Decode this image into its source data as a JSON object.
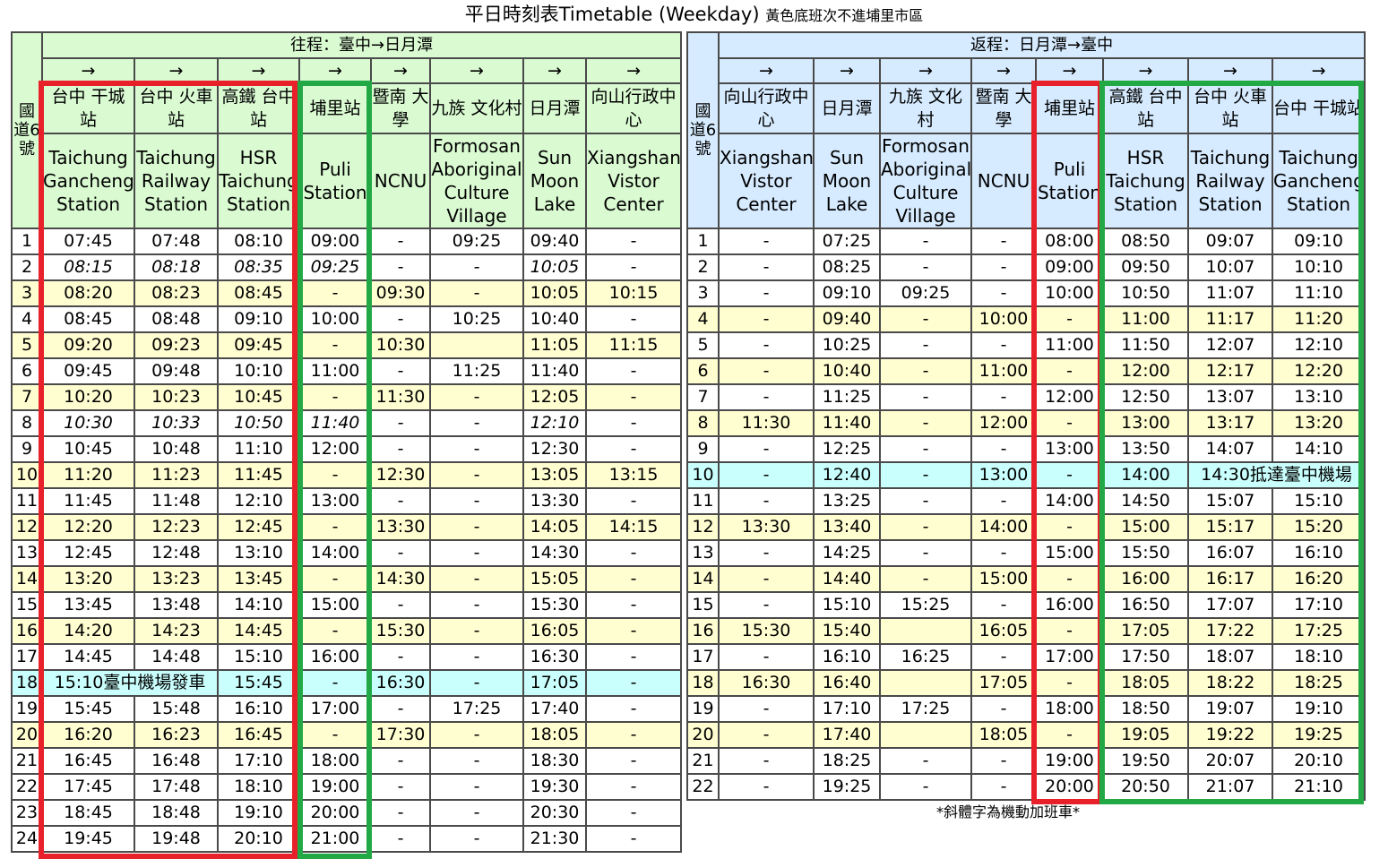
{
  "title": {
    "main": "平日時刻表Timetable (Weekday)",
    "sub": "黃色底班次不進埔里市區"
  },
  "note": "*斜體字為機動加班車*",
  "outbound": {
    "direction": "往程：臺中→日月潭",
    "route_label": "國道6號",
    "arrow": "→",
    "stops": [
      {
        "zh": "台中 干城站",
        "en": "Taichung Gancheng Station"
      },
      {
        "zh": "台中 火車站",
        "en": "Taichung Railway Station"
      },
      {
        "zh": "高鐵 台中站",
        "en": "HSR Taichung Station"
      },
      {
        "zh": "埔里站",
        "en": "Puli Station"
      },
      {
        "zh": "暨南 大學",
        "en": "NCNU"
      },
      {
        "zh": "九族 文化村",
        "en": "Formosan Aboriginal Culture Village"
      },
      {
        "zh": "日月潭",
        "en": "Sun Moon Lake"
      },
      {
        "zh": "向山行政中心",
        "en": "Xiangshan Vistor Center"
      }
    ],
    "rows": [
      {
        "no": "1",
        "t": [
          "07:45",
          "07:48",
          "08:10",
          "09:00",
          "-",
          "09:25",
          "09:40",
          "-"
        ]
      },
      {
        "no": "2",
        "italic": true,
        "t": [
          "08:15",
          "08:18",
          "08:35",
          "09:25",
          "-",
          "-",
          "10:05",
          "-"
        ]
      },
      {
        "no": "3",
        "yellow": true,
        "t": [
          "08:20",
          "08:23",
          "08:45",
          "-",
          "09:30",
          "-",
          "10:05",
          "10:15"
        ]
      },
      {
        "no": "4",
        "t": [
          "08:45",
          "08:48",
          "09:10",
          "10:00",
          "-",
          "10:25",
          "10:40",
          "-"
        ]
      },
      {
        "no": "5",
        "yellow": true,
        "t": [
          "09:20",
          "09:23",
          "09:45",
          "-",
          "10:30",
          "",
          "11:05",
          "11:15"
        ]
      },
      {
        "no": "6",
        "t": [
          "09:45",
          "09:48",
          "10:10",
          "11:00",
          "-",
          "11:25",
          "11:40",
          "-"
        ]
      },
      {
        "no": "7",
        "yellow": true,
        "t": [
          "10:20",
          "10:23",
          "10:45",
          "-",
          "11:30",
          "-",
          "12:05",
          "-"
        ]
      },
      {
        "no": "8",
        "italic": true,
        "t": [
          "10:30",
          "10:33",
          "10:50",
          "11:40",
          "-",
          "-",
          "12:10",
          "-"
        ]
      },
      {
        "no": "9",
        "t": [
          "10:45",
          "10:48",
          "11:10",
          "12:00",
          "-",
          "-",
          "12:30",
          "-"
        ]
      },
      {
        "no": "10",
        "yellow": true,
        "t": [
          "11:20",
          "11:23",
          "11:45",
          "-",
          "12:30",
          "-",
          "13:05",
          "13:15"
        ]
      },
      {
        "no": "11",
        "t": [
          "11:45",
          "11:48",
          "12:10",
          "13:00",
          "-",
          "-",
          "13:30",
          "-"
        ]
      },
      {
        "no": "12",
        "yellow": true,
        "t": [
          "12:20",
          "12:23",
          "12:45",
          "-",
          "13:30",
          "-",
          "14:05",
          "14:15"
        ]
      },
      {
        "no": "13",
        "t": [
          "12:45",
          "12:48",
          "13:10",
          "14:00",
          "-",
          "-",
          "14:30",
          "-"
        ]
      },
      {
        "no": "14",
        "yellow": true,
        "t": [
          "13:20",
          "13:23",
          "13:45",
          "-",
          "14:30",
          "-",
          "15:05",
          "-"
        ]
      },
      {
        "no": "15",
        "t": [
          "13:45",
          "13:48",
          "14:10",
          "15:00",
          "-",
          "-",
          "15:30",
          "-"
        ]
      },
      {
        "no": "16",
        "yellow": true,
        "t": [
          "14:20",
          "14:23",
          "14:45",
          "-",
          "15:30",
          "-",
          "16:05",
          "-"
        ]
      },
      {
        "no": "17",
        "t": [
          "14:45",
          "14:48",
          "15:10",
          "16:00",
          "-",
          "-",
          "16:30",
          "-"
        ]
      },
      {
        "no": "18",
        "cyan": true,
        "merged": "15:10臺中機場發車",
        "t": [
          "15:45",
          "-",
          "16:30",
          "-",
          "17:05",
          "-"
        ]
      },
      {
        "no": "19",
        "t": [
          "15:45",
          "15:48",
          "16:10",
          "17:00",
          "-",
          "17:25",
          "17:40",
          "-"
        ]
      },
      {
        "no": "20",
        "yellow": true,
        "t": [
          "16:20",
          "16:23",
          "16:45",
          "-",
          "17:30",
          "-",
          "18:05",
          "-"
        ]
      },
      {
        "no": "21",
        "t": [
          "16:45",
          "16:48",
          "17:10",
          "18:00",
          "-",
          "-",
          "18:30",
          "-"
        ]
      },
      {
        "no": "22",
        "t": [
          "17:45",
          "17:48",
          "18:10",
          "19:00",
          "-",
          "-",
          "19:30",
          "-"
        ]
      },
      {
        "no": "23",
        "t": [
          "18:45",
          "18:48",
          "19:10",
          "20:00",
          "-",
          "-",
          "20:30",
          "-"
        ]
      },
      {
        "no": "24",
        "t": [
          "19:45",
          "19:48",
          "20:10",
          "21:00",
          "-",
          "-",
          "21:30",
          "-"
        ]
      }
    ]
  },
  "return": {
    "direction": "返程：日月潭→臺中",
    "route_label": "國道6號",
    "arrow": "→",
    "stops": [
      {
        "zh": "向山行政中心",
        "en": "Xiangshan Vistor Center"
      },
      {
        "zh": "日月潭",
        "en": "Sun Moon Lake"
      },
      {
        "zh": "九族 文化村",
        "en": "Formosan Aboriginal Culture Village"
      },
      {
        "zh": "暨南 大學",
        "en": "NCNU"
      },
      {
        "zh": "埔里站",
        "en": "Puli Station"
      },
      {
        "zh": "高鐵 台中站",
        "en": "HSR Taichung Station"
      },
      {
        "zh": "台中 火車站",
        "en": "Taichung Railway Station"
      },
      {
        "zh": "台中 干城站",
        "en": "Taichung Gancheng Station"
      }
    ],
    "rows": [
      {
        "no": "1",
        "t": [
          "-",
          "07:25",
          "-",
          "-",
          "08:00",
          "08:50",
          "09:07",
          "09:10"
        ]
      },
      {
        "no": "2",
        "t": [
          "-",
          "08:25",
          "-",
          "-",
          "09:00",
          "09:50",
          "10:07",
          "10:10"
        ]
      },
      {
        "no": "3",
        "t": [
          "-",
          "09:10",
          "09:25",
          "-",
          "10:00",
          "10:50",
          "11:07",
          "11:10"
        ]
      },
      {
        "no": "4",
        "yellow": true,
        "t": [
          "-",
          "09:40",
          "-",
          "10:00",
          "-",
          "11:00",
          "11:17",
          "11:20"
        ]
      },
      {
        "no": "5",
        "t": [
          "-",
          "10:25",
          "-",
          "-",
          "11:00",
          "11:50",
          "12:07",
          "12:10"
        ]
      },
      {
        "no": "6",
        "yellow": true,
        "t": [
          "-",
          "10:40",
          "-",
          "11:00",
          "-",
          "12:00",
          "12:17",
          "12:20"
        ]
      },
      {
        "no": "7",
        "t": [
          "-",
          "11:25",
          "-",
          "-",
          "12:00",
          "12:50",
          "13:07",
          "13:10"
        ]
      },
      {
        "no": "8",
        "yellow": true,
        "t": [
          "11:30",
          "11:40",
          "-",
          "12:00",
          "-",
          "13:00",
          "13:17",
          "13:20"
        ]
      },
      {
        "no": "9",
        "t": [
          "-",
          "12:25",
          "-",
          "-",
          "13:00",
          "13:50",
          "14:07",
          "14:10"
        ]
      },
      {
        "no": "10",
        "cyan": true,
        "merged": "14:30抵達臺中機場",
        "t": [
          "-",
          "12:40",
          "-",
          "13:00",
          "-",
          "14:00"
        ]
      },
      {
        "no": "11",
        "t": [
          "-",
          "13:25",
          "-",
          "-",
          "14:00",
          "14:50",
          "15:07",
          "15:10"
        ]
      },
      {
        "no": "12",
        "yellow": true,
        "t": [
          "13:30",
          "13:40",
          "-",
          "14:00",
          "-",
          "15:00",
          "15:17",
          "15:20"
        ]
      },
      {
        "no": "13",
        "t": [
          "-",
          "14:25",
          "-",
          "-",
          "15:00",
          "15:50",
          "16:07",
          "16:10"
        ]
      },
      {
        "no": "14",
        "yellow": true,
        "t": [
          "-",
          "14:40",
          "-",
          "15:00",
          "-",
          "16:00",
          "16:17",
          "16:20"
        ]
      },
      {
        "no": "15",
        "t": [
          "-",
          "15:10",
          "15:25",
          "-",
          "16:00",
          "16:50",
          "17:07",
          "17:10"
        ]
      },
      {
        "no": "16",
        "yellow": true,
        "t": [
          "15:30",
          "15:40",
          "",
          "16:05",
          "-",
          "17:05",
          "17:22",
          "17:25"
        ]
      },
      {
        "no": "17",
        "t": [
          "-",
          "16:10",
          "16:25",
          "-",
          "17:00",
          "17:50",
          "18:07",
          "18:10"
        ]
      },
      {
        "no": "18",
        "yellow": true,
        "t": [
          "16:30",
          "16:40",
          "",
          "17:05",
          "-",
          "18:05",
          "18:22",
          "18:25"
        ]
      },
      {
        "no": "19",
        "t": [
          "-",
          "17:10",
          "17:25",
          "-",
          "18:00",
          "18:50",
          "19:07",
          "19:10"
        ]
      },
      {
        "no": "20",
        "yellow": true,
        "t": [
          "-",
          "17:40",
          "",
          "18:05",
          "-",
          "19:05",
          "19:22",
          "19:25"
        ]
      },
      {
        "no": "21",
        "t": [
          "-",
          "18:25",
          "-",
          "-",
          "19:00",
          "19:50",
          "20:07",
          "20:10"
        ]
      },
      {
        "no": "22",
        "t": [
          "-",
          "19:25",
          "-",
          "-",
          "20:00",
          "20:50",
          "21:07",
          "21:10"
        ]
      }
    ]
  }
}
